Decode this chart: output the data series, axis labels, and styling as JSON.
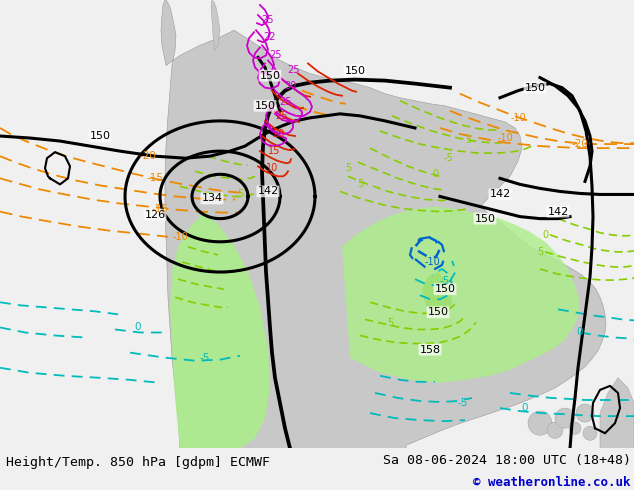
{
  "title_left": "Height/Temp. 850 hPa [gdpm] ECMWF",
  "title_right": "Sa 08-06-2024 18:00 UTC (18+48)",
  "copyright": "© weatheronline.co.uk",
  "bg_color": "#f0f0f0",
  "bottom_bar_color": "#f0f0f0",
  "title_fontsize": 9.5,
  "copyright_fontsize": 9.0,
  "copyright_color": "#0000cc",
  "fig_width": 6.34,
  "fig_height": 4.9,
  "dpi": 100,
  "ocean_color": "#f5f5f5",
  "land_color": "#c8c8c8",
  "green_fill": "#aaee88",
  "black": "#000000",
  "cyan": "#00bbbb",
  "blue": "#0066cc",
  "orange": "#ee8800",
  "red": "#dd2200",
  "magenta": "#cc00cc",
  "yellow_green": "#88cc00",
  "dark_green": "#44aa00"
}
